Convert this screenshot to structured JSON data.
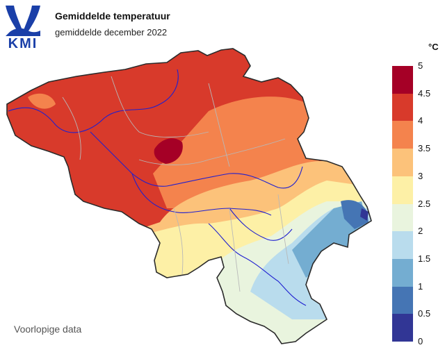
{
  "logo": {
    "text": "KMI"
  },
  "title": "Gemiddelde temperatuur",
  "subtitle": "gemiddelde december 2022",
  "legend": {
    "unit": "°C",
    "bins": [
      {
        "from": 0,
        "to": 0.5,
        "color": "#313695"
      },
      {
        "from": 0.5,
        "to": 1,
        "color": "#4575b4"
      },
      {
        "from": 1,
        "to": 1.5,
        "color": "#74add1"
      },
      {
        "from": 1.5,
        "to": 2,
        "color": "#b9dced"
      },
      {
        "from": 2,
        "to": 2.5,
        "color": "#e9f4de"
      },
      {
        "from": 2.5,
        "to": 3,
        "color": "#fdf0a6"
      },
      {
        "from": 3,
        "to": 3.5,
        "color": "#fcc27a"
      },
      {
        "from": 3.5,
        "to": 4,
        "color": "#f4834d"
      },
      {
        "from": 4,
        "to": 4.5,
        "color": "#d83a2b"
      },
      {
        "from": 4.5,
        "to": 5,
        "color": "#a50026"
      }
    ],
    "ticks": [
      "0",
      "0.5",
      "1",
      "1.5",
      "2",
      "2.5",
      "3",
      "3.5",
      "4",
      "4.5",
      "5"
    ]
  },
  "note": "Voorlopige data"
}
